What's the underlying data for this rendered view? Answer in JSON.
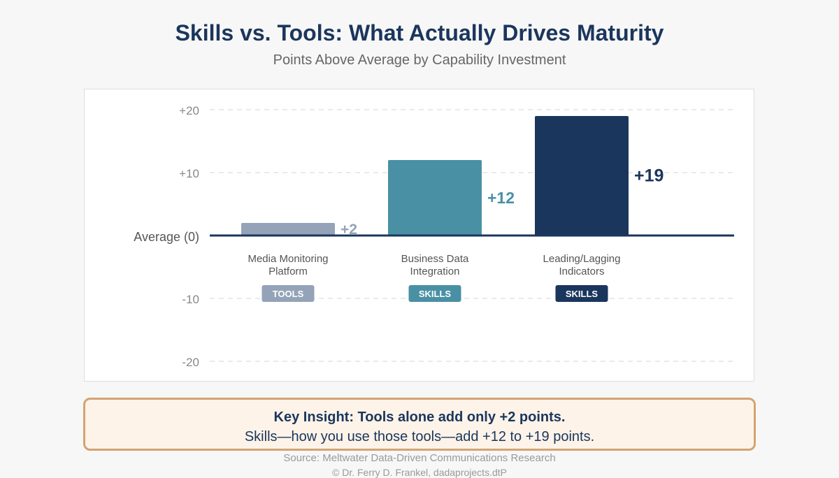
{
  "header": {
    "title": "Skills vs. Tools: What Actually Drives Maturity",
    "subtitle": "Points Above Average by Capability Investment"
  },
  "chart_data": {
    "type": "bar",
    "categories": [
      [
        "Media Monitoring",
        "Platform"
      ],
      [
        "Business Data",
        "Integration"
      ],
      [
        "Leading/Lagging",
        "Indicators"
      ]
    ],
    "values": [
      2,
      12,
      19
    ],
    "value_labels": [
      "+2",
      "+12",
      "+19"
    ],
    "badges": [
      "TOOLS",
      "SKILLS",
      "SKILLS"
    ],
    "colors": [
      "#94a3b8",
      "#4a90a4",
      "#1b365d"
    ],
    "baseline_label": "Average (0)",
    "yticks": [
      {
        "value": 20,
        "label": "+20"
      },
      {
        "value": 10,
        "label": "+10"
      },
      {
        "value": -10,
        "label": "-10"
      },
      {
        "value": -20,
        "label": "-20"
      }
    ],
    "ylim": [
      -20,
      20
    ],
    "grid": true
  },
  "insight": {
    "title": "Key Insight: Tools alone add only +2 points.",
    "text": "Skills—how you use those tools—add +12 to +19 points."
  },
  "footer": {
    "source": "Source: Meltwater Data-Driven Communications Research",
    "copyright": "© Dr. Ferry D. Frankel, dadaprojects.dtP"
  }
}
